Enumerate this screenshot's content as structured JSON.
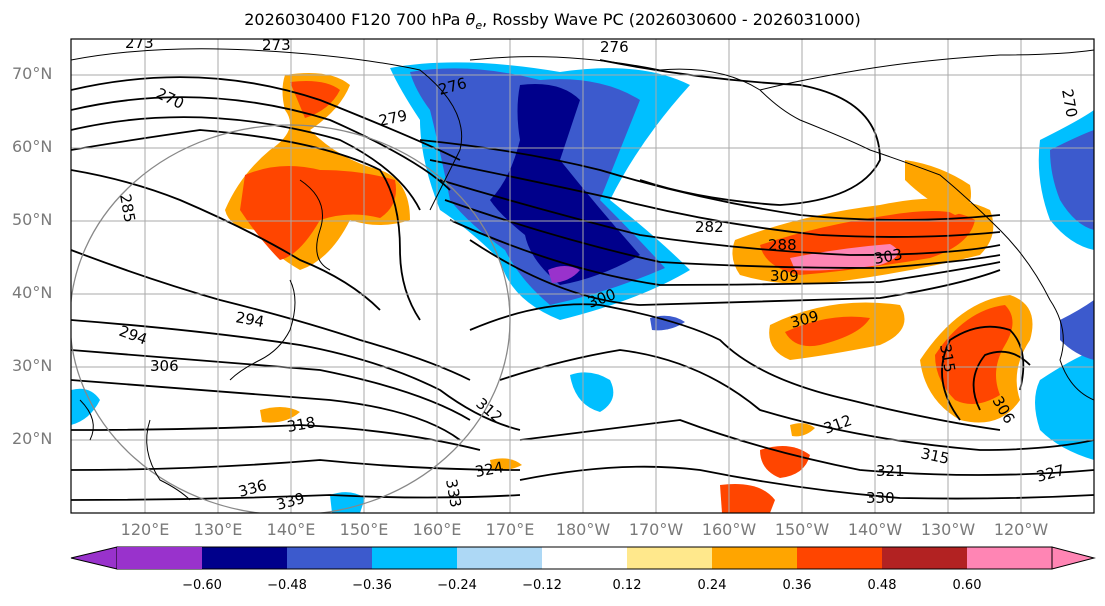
{
  "title_prefix": "2026030400 F120 700 hPa ",
  "title_theta": "θ",
  "title_sub": "e",
  "title_suffix": ", Rossby Wave PC (2026030600 - 2026031000)",
  "lat_labels": [
    "70°N",
    "60°N",
    "50°N",
    "40°N",
    "30°N",
    "20°N"
  ],
  "lon_labels": [
    "120°E",
    "130°E",
    "140°E",
    "150°E",
    "160°E",
    "170°E",
    "180°W",
    "170°W",
    "160°W",
    "150°W",
    "140°W",
    "130°W",
    "120°W"
  ],
  "colorbar": {
    "ticks": [
      "−0.60",
      "−0.48",
      "−0.36",
      "−0.24",
      "−0.12",
      "0.12",
      "0.24",
      "0.36",
      "0.48",
      "0.60"
    ],
    "colors": [
      "#9932cc",
      "#00008b",
      "#3c5acd",
      "#00bfff",
      "#add8f5",
      "#ffffff",
      "#ffe88c",
      "#ffa500",
      "#ff4500",
      "#b22222",
      "#ff85b4"
    ]
  },
  "contour_labels": [
    "273",
    "273",
    "276",
    "270",
    "276",
    "279",
    "285",
    "282",
    "288",
    "303",
    "309",
    "300",
    "309",
    "294",
    "294",
    "306",
    "318",
    "312",
    "312",
    "315",
    "321",
    "327",
    "330",
    "324",
    "333",
    "336",
    "339",
    "306",
    "315",
    "270"
  ],
  "colors": {
    "pos_shade": "#ffa500",
    "neg_shade": "#3c5acd",
    "contour": "#000000",
    "grid": "#aaaaaa"
  }
}
